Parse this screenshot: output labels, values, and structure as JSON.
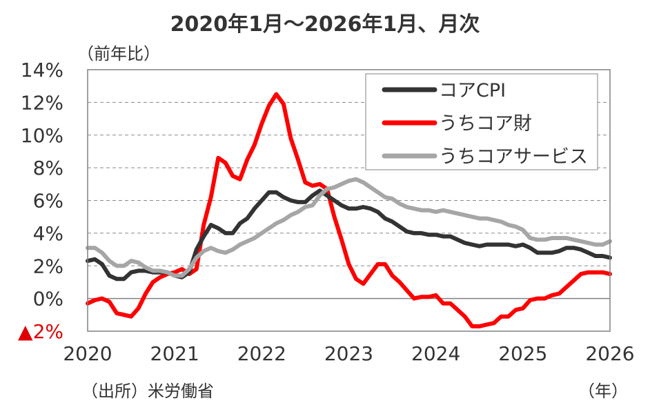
{
  "chart_data": {
    "type": "line",
    "title": "2020年1月～2026年1月、月次",
    "ylabel": "（前年比）",
    "xlabel": "（年）",
    "source": "（出所）米労働省",
    "ylim": [
      -2,
      14
    ],
    "yticks": [
      -2,
      0,
      2,
      4,
      6,
      8,
      10,
      12,
      14
    ],
    "ytick_labels": [
      "▲2%",
      "0%",
      "2%",
      "4%",
      "6%",
      "8%",
      "10%",
      "12%",
      "14%"
    ],
    "xticks": [
      "2020",
      "2021",
      "2022",
      "2023",
      "2024",
      "2025",
      "2026"
    ],
    "x_start": "2020-01",
    "x_end": "2026-01",
    "grid": "horizontal dashed",
    "legend_placement": "top-right",
    "colors": {
      "core_cpi": "#333333",
      "core_goods": "#ff0000",
      "core_services": "#a6a6a6",
      "negative_label": "#e00000"
    },
    "series": [
      {
        "name": "コアCPI",
        "color": "#333333",
        "values": [
          2.3,
          2.4,
          2.1,
          1.4,
          1.2,
          1.2,
          1.6,
          1.7,
          1.7,
          1.6,
          1.6,
          1.6,
          1.4,
          1.3,
          1.6,
          3.0,
          3.8,
          4.5,
          4.3,
          4.0,
          4.0,
          4.6,
          4.9,
          5.5,
          6.0,
          6.5,
          6.5,
          6.2,
          6.0,
          5.9,
          5.9,
          6.3,
          6.6,
          6.3,
          6.0,
          5.7,
          5.5,
          5.5,
          5.6,
          5.5,
          5.3,
          4.9,
          4.7,
          4.4,
          4.1,
          4.0,
          4.0,
          3.9,
          3.9,
          3.8,
          3.8,
          3.6,
          3.4,
          3.3,
          3.2,
          3.3,
          3.3,
          3.3,
          3.3,
          3.2,
          3.3,
          3.1,
          2.8,
          2.8,
          2.8,
          2.9,
          3.1,
          3.1,
          3.0,
          2.8,
          2.6,
          2.6,
          2.5
        ]
      },
      {
        "name": "うちコア財",
        "color": "#ff0000",
        "values": [
          -0.3,
          -0.1,
          0.0,
          -0.2,
          -0.9,
          -1.0,
          -1.1,
          -0.6,
          0.3,
          1.0,
          1.3,
          1.5,
          1.6,
          1.8,
          1.5,
          1.8,
          4.5,
          6.2,
          8.6,
          8.3,
          7.5,
          7.3,
          8.5,
          9.4,
          10.7,
          11.8,
          12.5,
          11.9,
          9.8,
          8.5,
          7.1,
          6.9,
          7.0,
          6.7,
          5.0,
          3.6,
          2.1,
          1.2,
          0.9,
          1.5,
          2.1,
          2.1,
          1.4,
          1.0,
          0.5,
          0.0,
          0.1,
          0.1,
          0.2,
          -0.3,
          -0.3,
          -0.7,
          -1.1,
          -1.7,
          -1.7,
          -1.6,
          -1.5,
          -1.1,
          -1.1,
          -0.7,
          -0.6,
          -0.1,
          0.0,
          0.0,
          0.2,
          0.3,
          0.7,
          1.1,
          1.5,
          1.6,
          1.6,
          1.6,
          1.5
        ]
      },
      {
        "name": "うちコアサービス",
        "color": "#a6a6a6",
        "values": [
          3.1,
          3.1,
          2.8,
          2.3,
          2.0,
          2.0,
          2.3,
          2.2,
          1.9,
          1.7,
          1.7,
          1.6,
          1.4,
          1.4,
          1.8,
          2.5,
          2.9,
          3.1,
          2.9,
          2.8,
          3.0,
          3.3,
          3.5,
          3.7,
          4.0,
          4.3,
          4.6,
          4.8,
          5.1,
          5.3,
          5.6,
          5.7,
          6.3,
          6.7,
          6.8,
          7.0,
          7.2,
          7.3,
          7.1,
          6.8,
          6.5,
          6.2,
          6.1,
          5.8,
          5.6,
          5.5,
          5.4,
          5.4,
          5.3,
          5.4,
          5.3,
          5.2,
          5.1,
          5.0,
          4.9,
          4.9,
          4.8,
          4.7,
          4.5,
          4.4,
          4.2,
          3.7,
          3.6,
          3.6,
          3.7,
          3.7,
          3.7,
          3.6,
          3.5,
          3.4,
          3.3,
          3.3,
          3.5
        ]
      }
    ]
  }
}
